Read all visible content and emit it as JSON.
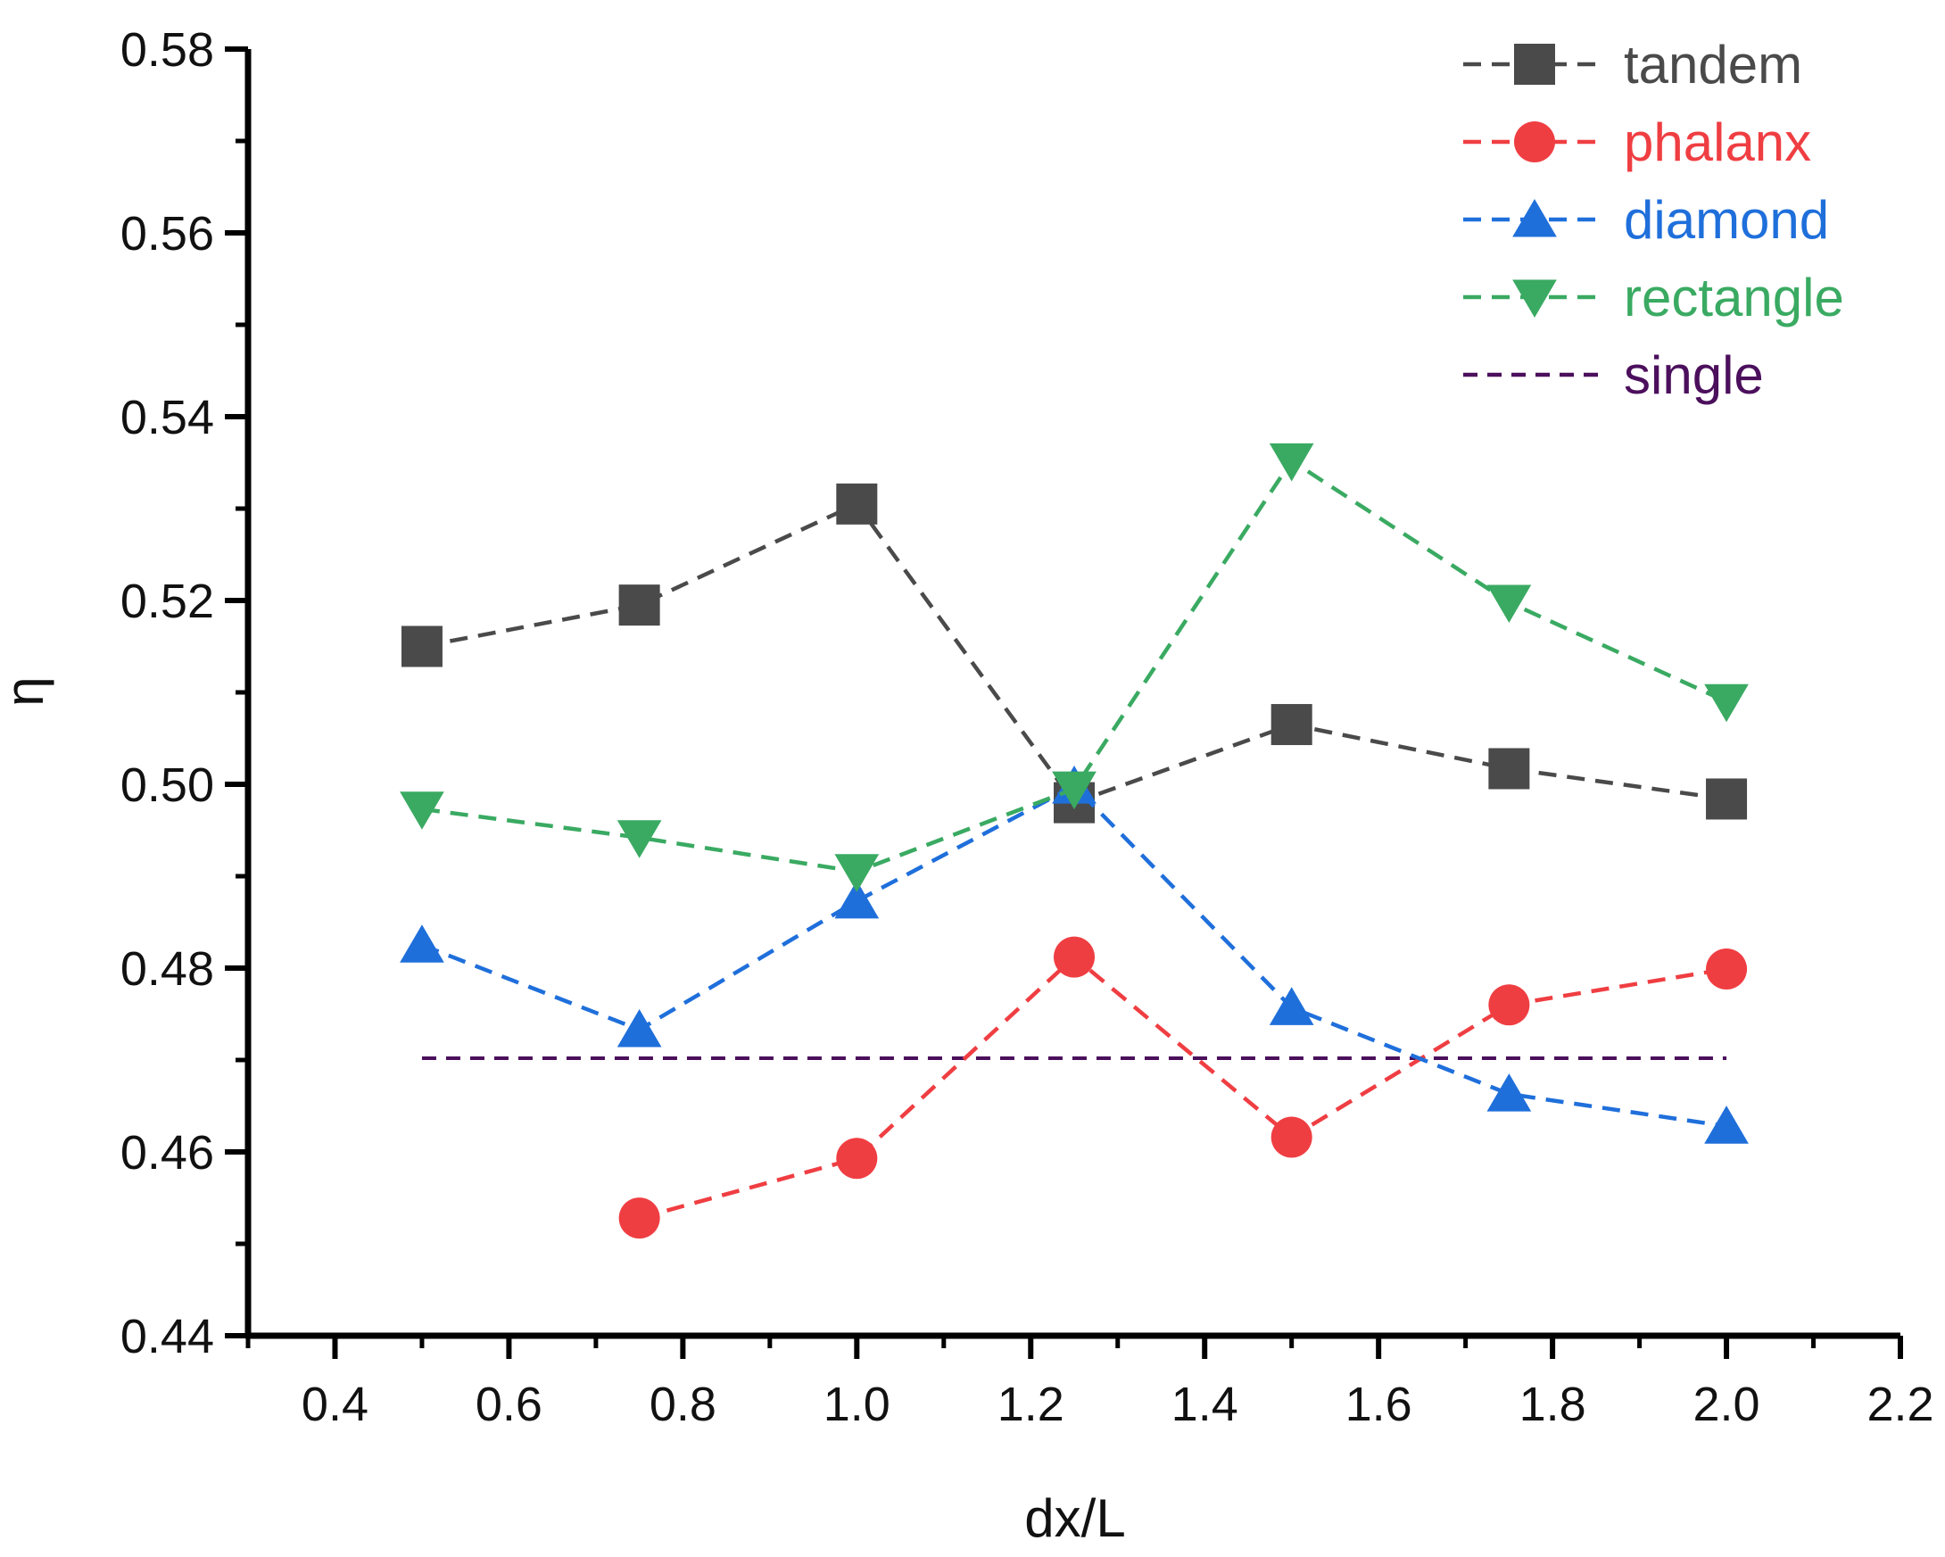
{
  "chart_data": {
    "type": "line",
    "title": "",
    "xlabel": "dx/L",
    "ylabel": "η",
    "xlim": [
      0.3,
      2.2
    ],
    "ylim": [
      0.44,
      0.58
    ],
    "xticks": [
      0.4,
      0.6,
      0.8,
      1.0,
      1.2,
      1.4,
      1.6,
      1.8,
      2.0,
      2.2
    ],
    "xtick_labels": [
      "0.4",
      "0.6",
      "0.8",
      "1.0",
      "1.2",
      "1.4",
      "1.6",
      "1.8",
      "2.0",
      "2.2"
    ],
    "yticks": [
      0.44,
      0.46,
      0.48,
      0.5,
      0.52,
      0.54,
      0.56,
      0.58
    ],
    "ytick_labels": [
      "0.44",
      "0.46",
      "0.48",
      "0.50",
      "0.52",
      "0.54",
      "0.56",
      "0.58"
    ],
    "grid": false,
    "legend_position": "top-right",
    "series": [
      {
        "name": "tandem",
        "color": "#4a4a4a",
        "marker": "square",
        "x": [
          0.5,
          0.75,
          1.0,
          1.25,
          1.5,
          1.75,
          2.0
        ],
        "values": [
          0.515,
          0.5195,
          0.5305,
          0.498,
          0.5065,
          0.5017,
          0.4984
        ]
      },
      {
        "name": "phalanx",
        "color": "#ef3e42",
        "marker": "circle",
        "x": [
          0.75,
          1.0,
          1.25,
          1.5,
          1.75,
          2.0
        ],
        "values": [
          0.4528,
          0.4593,
          0.4812,
          0.4616,
          0.476,
          0.4799
        ]
      },
      {
        "name": "diamond",
        "color": "#1f6fdb",
        "marker": "triangle-up",
        "x": [
          0.5,
          0.75,
          1.0,
          1.25,
          1.5,
          1.75,
          2.0
        ],
        "values": [
          0.4825,
          0.4733,
          0.4873,
          0.4998,
          0.4757,
          0.4663,
          0.4628
        ]
      },
      {
        "name": "rectangle",
        "color": "#3aaa62",
        "marker": "triangle-down",
        "x": [
          0.5,
          0.75,
          1.0,
          1.25,
          1.5,
          1.75,
          2.0
        ],
        "values": [
          0.4973,
          0.4942,
          0.4905,
          0.4995,
          0.5352,
          0.5198,
          0.509
        ]
      },
      {
        "name": "single",
        "color": "#4b0f5c",
        "marker": "none",
        "x": [
          0.5,
          2.0
        ],
        "values": [
          0.4702,
          0.4702
        ]
      }
    ]
  }
}
